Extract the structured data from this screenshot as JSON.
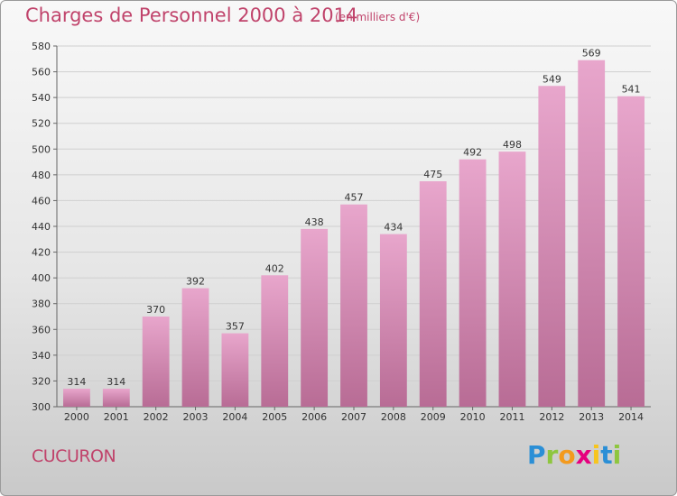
{
  "header": {
    "title": "Charges de Personnel 2000 à 2014",
    "subtitle": "(en milliers d'€)"
  },
  "footer": {
    "city": "CUCURON",
    "logo_letters": [
      "P",
      "r",
      "o",
      "x",
      "i",
      "t",
      "i"
    ],
    "logo_colors": [
      "#2b8fd6",
      "#8ec63f",
      "#f39a1e",
      "#e6007e",
      "#f7c51e",
      "#2b8fd6",
      "#8ec63f"
    ]
  },
  "colors": {
    "accent": "#c0436b",
    "bar_top": "#e8a6cc",
    "bar_bottom": "#b86c95",
    "grid": "#d0d0d0"
  },
  "chart_data": {
    "type": "bar",
    "title": "Charges de Personnel 2000 à 2014",
    "subtitle": "(en milliers d'€)",
    "categories": [
      "2000",
      "2001",
      "2002",
      "2003",
      "2004",
      "2005",
      "2006",
      "2007",
      "2008",
      "2009",
      "2010",
      "2011",
      "2012",
      "2013",
      "2014"
    ],
    "values": [
      314,
      314,
      370,
      392,
      357,
      402,
      438,
      457,
      434,
      475,
      492,
      498,
      549,
      569,
      541
    ],
    "ylim": [
      300,
      580
    ],
    "yticks": [
      300,
      320,
      340,
      360,
      380,
      400,
      420,
      440,
      460,
      480,
      500,
      520,
      540,
      560,
      580
    ],
    "grid": true,
    "legend": "none"
  }
}
